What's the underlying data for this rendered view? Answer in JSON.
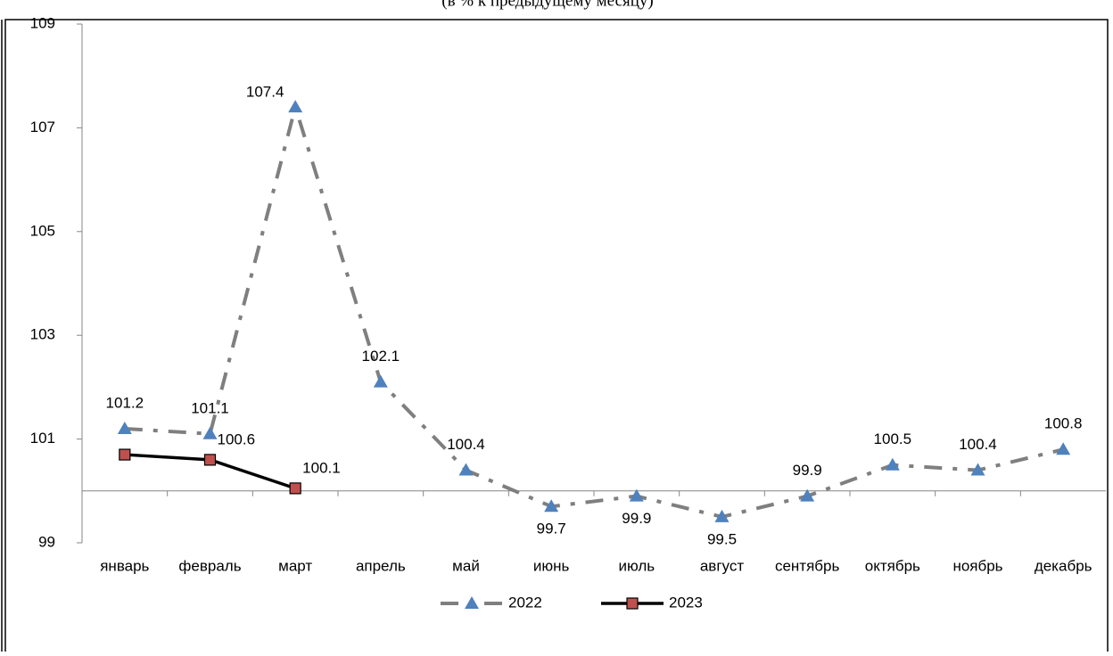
{
  "chart_data": {
    "type": "line",
    "subtitle": "(в % к предыдущему месяцу)",
    "categories": [
      "январь",
      "февраль",
      "март",
      "апрель",
      "май",
      "июнь",
      "июль",
      "август",
      "сентябрь",
      "октябрь",
      "ноябрь",
      "декабрь"
    ],
    "series": [
      {
        "name": "2022",
        "color": "#7f7f7f",
        "marker_color": "#4f81bd",
        "values": [
          101.2,
          101.1,
          107.4,
          102.1,
          100.4,
          99.7,
          99.9,
          99.5,
          99.9,
          100.5,
          100.4,
          100.8
        ]
      },
      {
        "name": "2023",
        "color": "#000000",
        "marker_color": "#c0504d",
        "values": [
          100.7,
          100.6,
          100.05,
          null,
          null,
          null,
          null,
          null,
          null,
          null,
          null,
          null
        ],
        "value_labels": [
          null,
          "100.6",
          "100.1",
          null,
          null,
          null,
          null,
          null,
          null,
          null,
          null,
          null
        ]
      }
    ],
    "ylim": [
      99,
      109
    ],
    "yticks": [
      99,
      101,
      103,
      105,
      107,
      109
    ],
    "x_axis_crosses": 100,
    "legend": "bottom",
    "grid": false
  }
}
